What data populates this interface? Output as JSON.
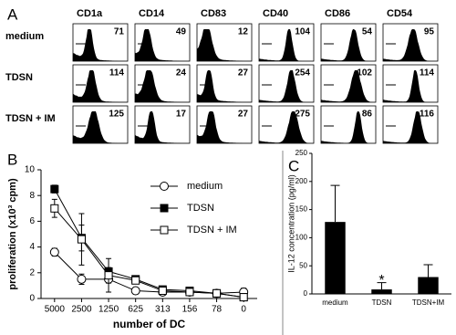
{
  "chart_data": [
    {
      "type": "histogram-grid",
      "panel_label": "A",
      "columns": [
        "CD1a",
        "CD14",
        "CD83",
        "CD40",
        "CD86",
        "CD54"
      ],
      "rows": [
        "medium",
        "TDSN",
        "TDSN + IM"
      ],
      "values": [
        [
          71,
          49,
          12,
          104,
          54,
          95
        ],
        [
          114,
          24,
          27,
          254,
          102,
          114
        ],
        [
          125,
          17,
          27,
          275,
          86,
          116
        ]
      ]
    },
    {
      "type": "line",
      "panel_label": "B",
      "categories": [
        "5000",
        "2500",
        "1250",
        "625",
        "313",
        "156",
        "78",
        "0"
      ],
      "xlabel": "number of DC",
      "ylabel": "proliferation (x10³ cpm)",
      "ylim": [
        0,
        10
      ],
      "yticks": [
        0,
        2,
        4,
        6,
        8,
        10
      ],
      "series": [
        {
          "name": "medium",
          "marker": "circle",
          "color": "#ffffff",
          "values": [
            3.6,
            1.5,
            1.5,
            0.6,
            0.5,
            0.5,
            0.4,
            0.5
          ],
          "errors": [
            0.3,
            0.4,
            0.3,
            0.1,
            0.1,
            0.1,
            0.1,
            0.3
          ]
        },
        {
          "name": "TDSN",
          "marker": "square",
          "color": "#000000",
          "values": [
            8.5,
            4.7,
            2.1,
            1.5,
            0.7,
            0.6,
            0.4,
            0.1
          ],
          "errors": [
            0.3,
            1.0,
            0.3,
            0.2,
            0.2,
            0.1,
            0.1,
            0.1
          ]
        },
        {
          "name": "TDSN + IM",
          "marker": "square",
          "color": "#ffffff",
          "values": [
            7.0,
            4.6,
            1.8,
            1.4,
            0.6,
            0.5,
            0.4,
            0.1
          ],
          "errors": [
            0.7,
            2.0,
            1.3,
            0.2,
            0.2,
            0.1,
            0.1,
            0.1
          ]
        }
      ]
    },
    {
      "type": "bar",
      "panel_label": "C",
      "categories": [
        "medium",
        "TDSN",
        "TDSN+IM"
      ],
      "values": [
        128,
        8,
        30
      ],
      "errors": [
        65,
        12,
        22
      ],
      "color": "#000000",
      "ylabel": "IL-12 concentration (pg/ml)",
      "ylim": [
        0,
        250
      ],
      "yticks": [
        0,
        50,
        100,
        150,
        200,
        250
      ],
      "annotation": "*"
    }
  ]
}
